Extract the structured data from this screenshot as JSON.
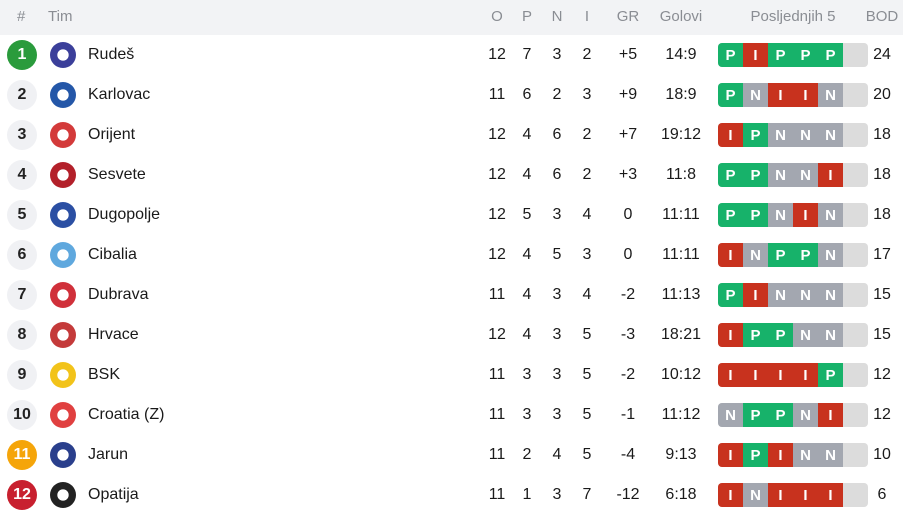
{
  "header": {
    "rank": "#",
    "team": "Tim",
    "played": "O",
    "won": "P",
    "drawn": "N",
    "lost": "I",
    "goal_diff": "GR",
    "goals": "Golovi",
    "form": "Posljednjih 5",
    "points": "BOD"
  },
  "colors": {
    "win": "#17b26a",
    "loss": "#c8321e",
    "draw": "#a3a7b0",
    "rank_promotion": "#2a9b3c",
    "rank_playoff": "#f5a50a",
    "rank_relegation": "#c8202f"
  },
  "rows": [
    {
      "rank": "1",
      "team": "Rudeš",
      "o": "12",
      "p": "7",
      "n": "3",
      "i": "2",
      "gr": "+5",
      "goals": "14:9",
      "form": [
        "P",
        "I",
        "P",
        "P",
        "P"
      ],
      "bod": "24",
      "rank_color": "#2a9b3c",
      "logo": "#3b3f9a"
    },
    {
      "rank": "2",
      "team": "Karlovac",
      "o": "11",
      "p": "6",
      "n": "2",
      "i": "3",
      "gr": "+9",
      "goals": "18:9",
      "form": [
        "P",
        "N",
        "I",
        "I",
        "N"
      ],
      "bod": "20",
      "logo": "#2457a8"
    },
    {
      "rank": "3",
      "team": "Orijent",
      "o": "12",
      "p": "4",
      "n": "6",
      "i": "2",
      "gr": "+7",
      "goals": "19:12",
      "form": [
        "I",
        "P",
        "N",
        "N",
        "N"
      ],
      "bod": "18",
      "logo": "#d33a3a"
    },
    {
      "rank": "4",
      "team": "Sesvete",
      "o": "12",
      "p": "4",
      "n": "6",
      "i": "2",
      "gr": "+3",
      "goals": "11:8",
      "form": [
        "P",
        "P",
        "N",
        "N",
        "I"
      ],
      "bod": "18",
      "logo": "#b3202a"
    },
    {
      "rank": "5",
      "team": "Dugopolje",
      "o": "12",
      "p": "5",
      "n": "3",
      "i": "4",
      "gr": "0",
      "goals": "11:11",
      "form": [
        "P",
        "P",
        "N",
        "I",
        "N"
      ],
      "bod": "18",
      "logo": "#2b4fa3"
    },
    {
      "rank": "6",
      "team": "Cibalia",
      "o": "12",
      "p": "4",
      "n": "5",
      "i": "3",
      "gr": "0",
      "goals": "11:11",
      "form": [
        "I",
        "N",
        "P",
        "P",
        "N"
      ],
      "bod": "17",
      "logo": "#5fa8de"
    },
    {
      "rank": "7",
      "team": "Dubrava",
      "o": "11",
      "p": "4",
      "n": "3",
      "i": "4",
      "gr": "-2",
      "goals": "11:13",
      "form": [
        "P",
        "I",
        "N",
        "N",
        "N"
      ],
      "bod": "15",
      "logo": "#d0303a"
    },
    {
      "rank": "8",
      "team": "Hrvace",
      "o": "12",
      "p": "4",
      "n": "3",
      "i": "5",
      "gr": "-3",
      "goals": "18:21",
      "form": [
        "I",
        "P",
        "P",
        "N",
        "N"
      ],
      "bod": "15",
      "logo": "#c43a3a"
    },
    {
      "rank": "9",
      "team": "BSK",
      "o": "11",
      "p": "3",
      "n": "3",
      "i": "5",
      "gr": "-2",
      "goals": "10:12",
      "form": [
        "I",
        "I",
        "I",
        "I",
        "P"
      ],
      "bod": "12",
      "logo": "#f2c31a"
    },
    {
      "rank": "10",
      "team": "Croatia (Z)",
      "o": "11",
      "p": "3",
      "n": "3",
      "i": "5",
      "gr": "-1",
      "goals": "11:12",
      "form": [
        "N",
        "P",
        "P",
        "N",
        "I"
      ],
      "bod": "12",
      "logo": "#e04040"
    },
    {
      "rank": "11",
      "team": "Jarun",
      "o": "11",
      "p": "2",
      "n": "4",
      "i": "5",
      "gr": "-4",
      "goals": "9:13",
      "form": [
        "I",
        "P",
        "I",
        "N",
        "N"
      ],
      "bod": "10",
      "rank_color": "#f5a50a",
      "logo": "#2a3f8c"
    },
    {
      "rank": "12",
      "team": "Opatija",
      "o": "11",
      "p": "1",
      "n": "3",
      "i": "7",
      "gr": "-12",
      "goals": "6:18",
      "form": [
        "I",
        "N",
        "I",
        "I",
        "I"
      ],
      "bod": "6",
      "rank_color": "#c8202f",
      "logo": "#222222"
    }
  ]
}
